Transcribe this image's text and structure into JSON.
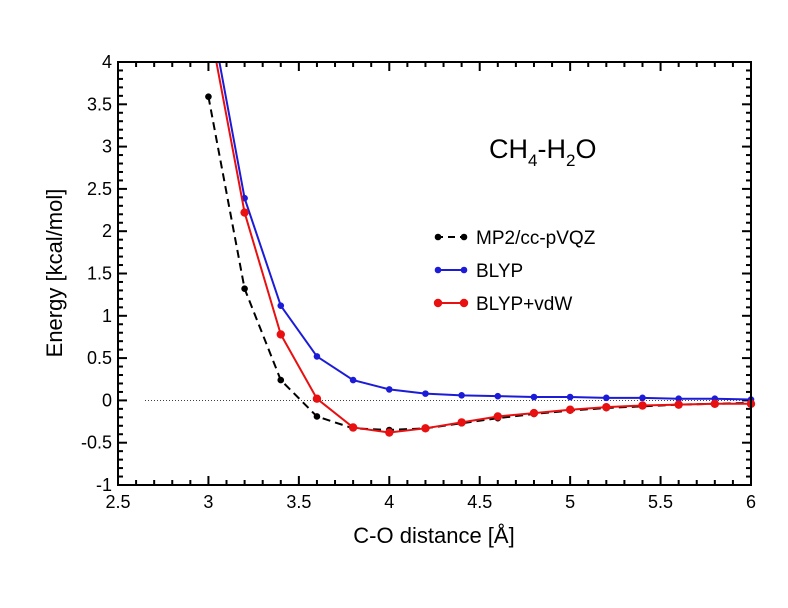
{
  "chart_data": {
    "type": "line",
    "title": "",
    "xlabel": "C-O distance [Å]",
    "ylabel": "Energy [kcal/mol]",
    "xlim": [
      2.5,
      6
    ],
    "ylim": [
      -1,
      4
    ],
    "xticks": [
      "2.5",
      "3",
      "3.5",
      "4",
      "4.5",
      "5",
      "5.5",
      "6"
    ],
    "yticks": [
      "-1",
      "-0.5",
      "0",
      "0.5",
      "1",
      "1.5",
      "2",
      "2.5",
      "3",
      "3.5",
      "4"
    ],
    "grid": false,
    "zero_reference_line": true,
    "legend_position": "center-right",
    "annotation": {
      "parts": [
        "CH",
        "4",
        "-H",
        "2",
        "O"
      ]
    },
    "series": [
      {
        "name": "MP2/cc-pVQZ",
        "color": "#000000",
        "dashed": true,
        "x": [
          3.0,
          3.2,
          3.4,
          3.6,
          3.8,
          4.0,
          4.2,
          4.4,
          4.6,
          4.8,
          5.0,
          5.2,
          5.4,
          5.6,
          5.8,
          6.0
        ],
        "y": [
          3.59,
          1.32,
          0.24,
          -0.19,
          -0.33,
          -0.35,
          -0.33,
          -0.27,
          -0.21,
          -0.16,
          -0.12,
          -0.09,
          -0.07,
          -0.05,
          -0.04,
          -0.03
        ]
      },
      {
        "name": "BLYP",
        "color": "#1c1cd8",
        "dashed": false,
        "x": [
          3.0,
          3.2,
          3.4,
          3.6,
          3.8,
          4.0,
          4.2,
          4.4,
          4.6,
          4.8,
          5.0,
          5.2,
          5.4,
          5.6,
          5.8,
          6.0
        ],
        "y": [
          4.7,
          2.39,
          1.12,
          0.52,
          0.24,
          0.13,
          0.08,
          0.06,
          0.05,
          0.04,
          0.04,
          0.03,
          0.03,
          0.02,
          0.02,
          0.01
        ]
      },
      {
        "name": "BLYP+vdW",
        "color": "#e81010",
        "dashed": false,
        "x": [
          3.0,
          3.2,
          3.4,
          3.6,
          3.8,
          4.0,
          4.2,
          4.4,
          4.6,
          4.8,
          5.0,
          5.2,
          5.4,
          5.6,
          5.8,
          6.0
        ],
        "y": [
          4.5,
          2.22,
          0.78,
          0.02,
          -0.32,
          -0.38,
          -0.33,
          -0.26,
          -0.19,
          -0.15,
          -0.11,
          -0.08,
          -0.06,
          -0.05,
          -0.04,
          -0.04
        ]
      }
    ]
  }
}
